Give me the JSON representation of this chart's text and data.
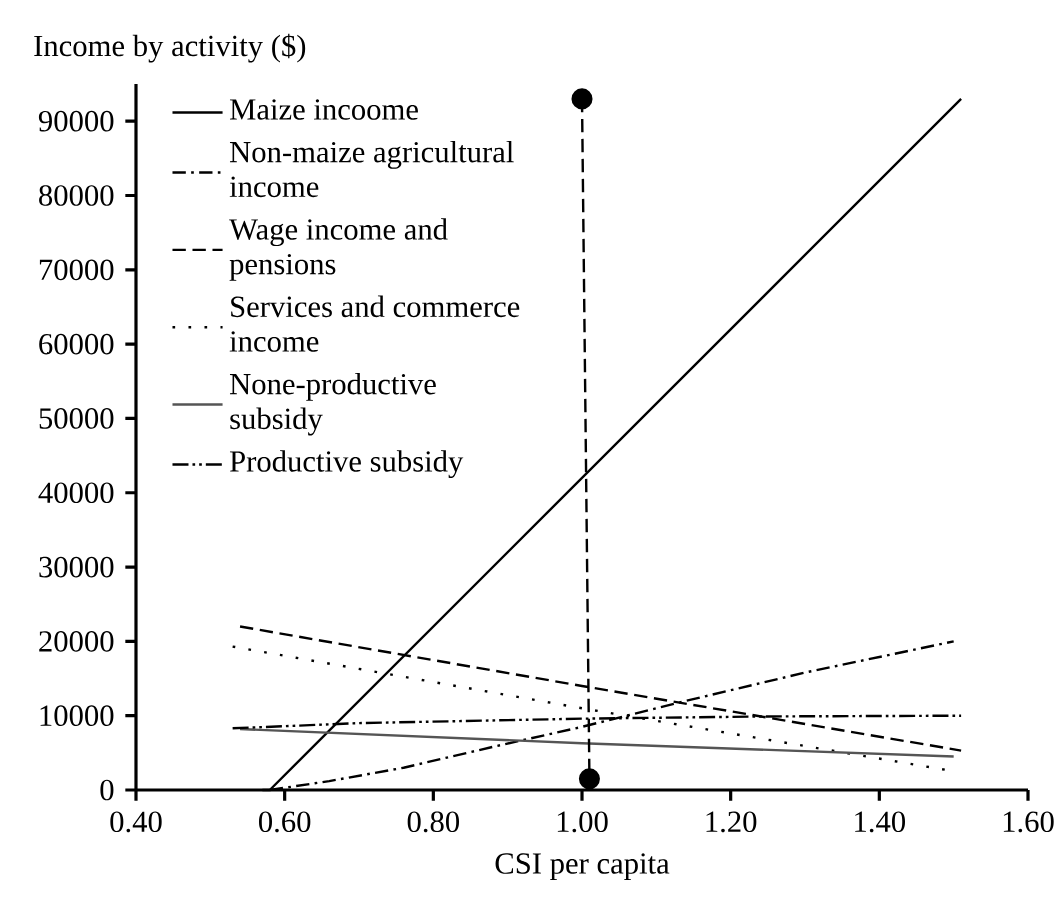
{
  "chart_data": {
    "type": "line",
    "ylabel": "Income by activity ($)",
    "xlabel": "CSI per capita",
    "xlim": [
      0.4,
      1.6
    ],
    "ylim": [
      0,
      95000
    ],
    "xticks": [
      {
        "value": 0.4,
        "label": "0.40"
      },
      {
        "value": 0.6,
        "label": "0.60"
      },
      {
        "value": 0.8,
        "label": "0.80"
      },
      {
        "value": 1.0,
        "label": "1.00"
      },
      {
        "value": 1.2,
        "label": "1.20"
      },
      {
        "value": 1.4,
        "label": "1.40"
      },
      {
        "value": 1.6,
        "label": "1.60"
      }
    ],
    "yticks": [
      0,
      10000,
      20000,
      30000,
      40000,
      50000,
      60000,
      70000,
      80000,
      90000
    ],
    "grid": false,
    "legend": "top left",
    "series": [
      {
        "name": "Maize incoome",
        "color": "#000000",
        "line_style": "solid",
        "x": [
          0.57,
          0.58,
          1.51
        ],
        "values": [
          0,
          0,
          93000
        ]
      },
      {
        "name": "Non-maize agricultural income",
        "color": "#000000",
        "line_style": "dashdot",
        "x": [
          0.58,
          0.66,
          0.76,
          0.88,
          1.0,
          1.14,
          1.3,
          1.5
        ],
        "values": [
          0,
          1200,
          3000,
          5800,
          8500,
          12000,
          15800,
          20000
        ]
      },
      {
        "name": "Wage income and pensions",
        "color": "#000000",
        "line_style": "dashed",
        "x": [
          0.54,
          1.0,
          1.51
        ],
        "values": [
          22000,
          14000,
          5300
        ]
      },
      {
        "name": "Services and commerce income",
        "color": "#000000",
        "line_style": "dotted",
        "x": [
          0.53,
          1.0,
          1.49
        ],
        "values": [
          19300,
          11000,
          2700
        ]
      },
      {
        "name": "None-productive subsidy",
        "color": "#555555",
        "line_style": "solid",
        "x": [
          0.54,
          1.0,
          1.5
        ],
        "values": [
          8200,
          6300,
          4500
        ]
      },
      {
        "name": "Productive subsidy",
        "color": "#000000",
        "line_style": "dashdotdot",
        "x": [
          0.53,
          0.7,
          1.0,
          1.25,
          1.51
        ],
        "values": [
          8300,
          9000,
          9600,
          9900,
          10000
        ]
      },
      {
        "color": "#000000",
        "line_style": "dashed",
        "marker": "circle",
        "x": [
          1.0,
          1.01
        ],
        "values": [
          93000,
          1500
        ]
      }
    ]
  }
}
